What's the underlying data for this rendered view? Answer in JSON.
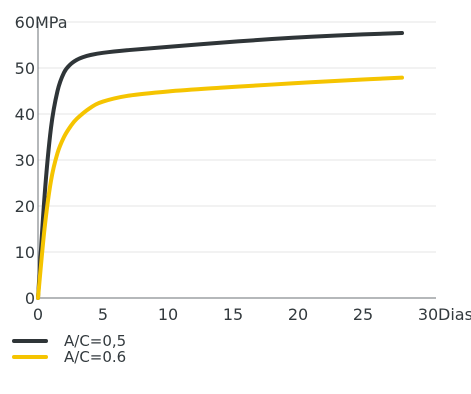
{
  "chart_data": {
    "type": "line",
    "title": "",
    "xlabel": "Dias",
    "ylabel": "MPa",
    "xlim": [
      0,
      30
    ],
    "ylim": [
      0,
      60
    ],
    "x_ticks": [
      0,
      5,
      10,
      15,
      20,
      25,
      30
    ],
    "y_ticks": [
      0,
      10,
      20,
      30,
      40,
      50,
      60
    ],
    "grid": "horizontal",
    "legend": "bottom-left",
    "series": [
      {
        "name": "A/C=0,5",
        "color": "#2f3538",
        "x": [
          0,
          0.5,
          1,
          1.5,
          2,
          2.5,
          3,
          3.5,
          4,
          5,
          7,
          10,
          14,
          18,
          21,
          25,
          28
        ],
        "y": [
          0,
          22,
          37,
          45,
          49,
          50.8,
          51.8,
          52.4,
          52.8,
          53.3,
          53.9,
          54.6,
          55.5,
          56.3,
          56.8,
          57.3,
          57.6
        ]
      },
      {
        "name": "A/C=0.6",
        "color": "#f5c400",
        "x": [
          0,
          0.5,
          1,
          1.5,
          2,
          2.5,
          3,
          4,
          5,
          7,
          10,
          14,
          18,
          21,
          25,
          28
        ],
        "y": [
          0,
          15,
          25.5,
          31.5,
          35,
          37.3,
          39,
          41.3,
          42.7,
          44,
          44.9,
          45.7,
          46.4,
          46.9,
          47.5,
          47.9
        ]
      }
    ]
  },
  "legend": {
    "items": [
      {
        "label": "A/C=0,5",
        "color": "#2f3538"
      },
      {
        "label": "A/C=0.6",
        "color": "#f5c400"
      }
    ]
  },
  "axis_units": {
    "y": "MPa",
    "x": "Dias"
  }
}
